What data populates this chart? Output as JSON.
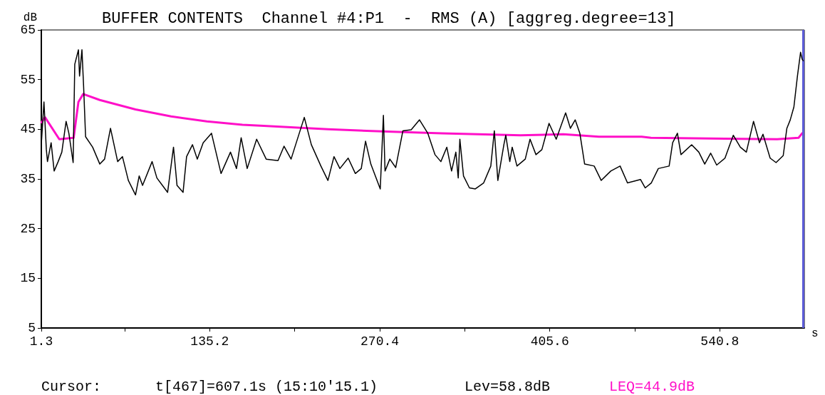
{
  "chart_data": {
    "type": "line",
    "title": "BUFFER CONTENTS  Channel #4:P1  -  RMS (A) [aggreg.degree=13]",
    "xlabel": "s",
    "ylabel": "dB",
    "annotations": [
      "Cursor:",
      "t[467]=607.1s (15:10'15.1)",
      "Lev=58.8dB",
      "LEQ=44.9dB"
    ],
    "xlim": [
      1.3,
      608
    ],
    "xticks": [
      1.3,
      {
        "value": 67.6,
        "label": null
      },
      135.2,
      {
        "value": 202.8,
        "label": null
      },
      270.4,
      {
        "value": 338,
        "label": null
      },
      405.6,
      {
        "value": 473.2,
        "label": null
      },
      540.8
    ],
    "ylim": [
      5,
      65
    ],
    "yticks": [
      5,
      15,
      25,
      35,
      45,
      55,
      65
    ],
    "grid": false,
    "marker": "none",
    "line_style": "solid",
    "ref_lines": [
      {
        "axis": "x",
        "value": 607.1,
        "color": "#5b5bd6"
      }
    ],
    "series": [
      {
        "color": "#000000",
        "x": [
          1.5,
          3.4,
          5.3,
          6.2,
          9.1,
          11.5,
          14.7,
          17.6,
          21.0,
          23.2,
          26.6,
          27.9,
          30.8,
          31.7,
          33.6,
          34.9,
          36.5,
          42.1,
          47.8,
          51.6,
          56.3,
          62.0,
          65.8,
          70.5,
          76.2,
          79.1,
          81.8,
          89.4,
          93.2,
          101.7,
          106.4,
          109.2,
          114.0,
          116.8,
          121.5,
          125.3,
          130.0,
          136.6,
          144.2,
          151.7,
          156.5,
          160.2,
          165.0,
          172.5,
          180.1,
          189.5,
          194.3,
          199.9,
          210.4,
          216.0,
          223.6,
          229.2,
          234.0,
          238.7,
          245.3,
          251.0,
          255.7,
          259.1,
          263.3,
          270.8,
          273.3,
          274.6,
          278.4,
          283.1,
          288.8,
          295.4,
          302.0,
          308.6,
          314.3,
          319.0,
          323.7,
          327.5,
          330.9,
          332.8,
          334.1,
          337.0,
          341.7,
          346.4,
          353.0,
          358.7,
          361.5,
          364.3,
          369.1,
          370.6,
          373.8,
          375.7,
          379.5,
          386.1,
          389.9,
          394.6,
          399.3,
          405.0,
          410.7,
          418.2,
          422.0,
          425.8,
          429.5,
          433.3,
          440.9,
          446.5,
          454.1,
          461.5,
          467.4,
          477.7,
          481.5,
          486.3,
          491.9,
          500.5,
          503.3,
          507.1,
          509.9,
          518.4,
          524.1,
          528.8,
          533.5,
          538.3,
          544.9,
          551.5,
          557.1,
          561.9,
          567.6,
          572.3,
          575.1,
          580.8,
          585.5,
          591.2,
          594.1,
          596.8,
          599.7,
          602.5,
          605.0,
          606.3,
          607.1
        ],
        "values": [
          42.8,
          50.5,
          40.9,
          38.5,
          42.3,
          36.6,
          38.5,
          40.4,
          46.6,
          44.2,
          38.3,
          58.1,
          61.0,
          55.7,
          61.0,
          53.8,
          43.5,
          41.4,
          38.0,
          39.0,
          45.2,
          38.5,
          39.5,
          34.7,
          31.8,
          35.6,
          33.7,
          38.5,
          35.2,
          32.3,
          41.4,
          33.7,
          32.3,
          39.5,
          41.9,
          39.0,
          42.3,
          44.2,
          36.1,
          40.4,
          37.1,
          43.3,
          37.1,
          43.0,
          39.0,
          38.7,
          41.6,
          39.0,
          47.4,
          41.9,
          37.6,
          34.7,
          39.5,
          37.1,
          39.2,
          36.1,
          37.1,
          42.6,
          38.0,
          33.0,
          47.8,
          36.6,
          39.0,
          37.3,
          44.7,
          44.9,
          46.9,
          44.2,
          39.9,
          38.5,
          41.4,
          36.6,
          40.4,
          35.2,
          43.0,
          35.6,
          33.2,
          33.0,
          34.2,
          37.6,
          44.7,
          34.7,
          41.9,
          43.8,
          38.5,
          41.4,
          37.6,
          39.0,
          43.0,
          39.9,
          40.9,
          46.2,
          43.0,
          48.3,
          45.2,
          46.9,
          44.2,
          38.0,
          37.6,
          34.7,
          36.6,
          37.6,
          34.2,
          34.9,
          33.2,
          34.2,
          37.1,
          37.6,
          42.3,
          44.2,
          39.9,
          41.9,
          40.4,
          38.0,
          40.2,
          37.8,
          39.2,
          43.8,
          41.4,
          40.4,
          46.6,
          42.3,
          44.0,
          39.2,
          38.3,
          39.7,
          45.2,
          46.9,
          49.5,
          55.7,
          60.5,
          59.1,
          58.8
        ]
      },
      {
        "color": "#ff10c8",
        "x": [
          1.5,
          4.3,
          15.6,
          27.0,
          30.8,
          34.6,
          47.8,
          76.2,
          104.5,
          132.9,
          161.2,
          178.2,
          229.2,
          280.3,
          320.0,
          382.3,
          416.3,
          444.7,
          478.7,
          486.0,
          586.4,
          603.4,
          606.3
        ],
        "values": [
          46.4,
          47.4,
          43.0,
          43.3,
          50.5,
          52.1,
          50.9,
          49.0,
          47.6,
          46.6,
          45.9,
          45.7,
          45.0,
          44.5,
          44.2,
          43.8,
          44.0,
          43.5,
          43.5,
          43.3,
          43.0,
          43.3,
          44.2
        ]
      }
    ]
  }
}
